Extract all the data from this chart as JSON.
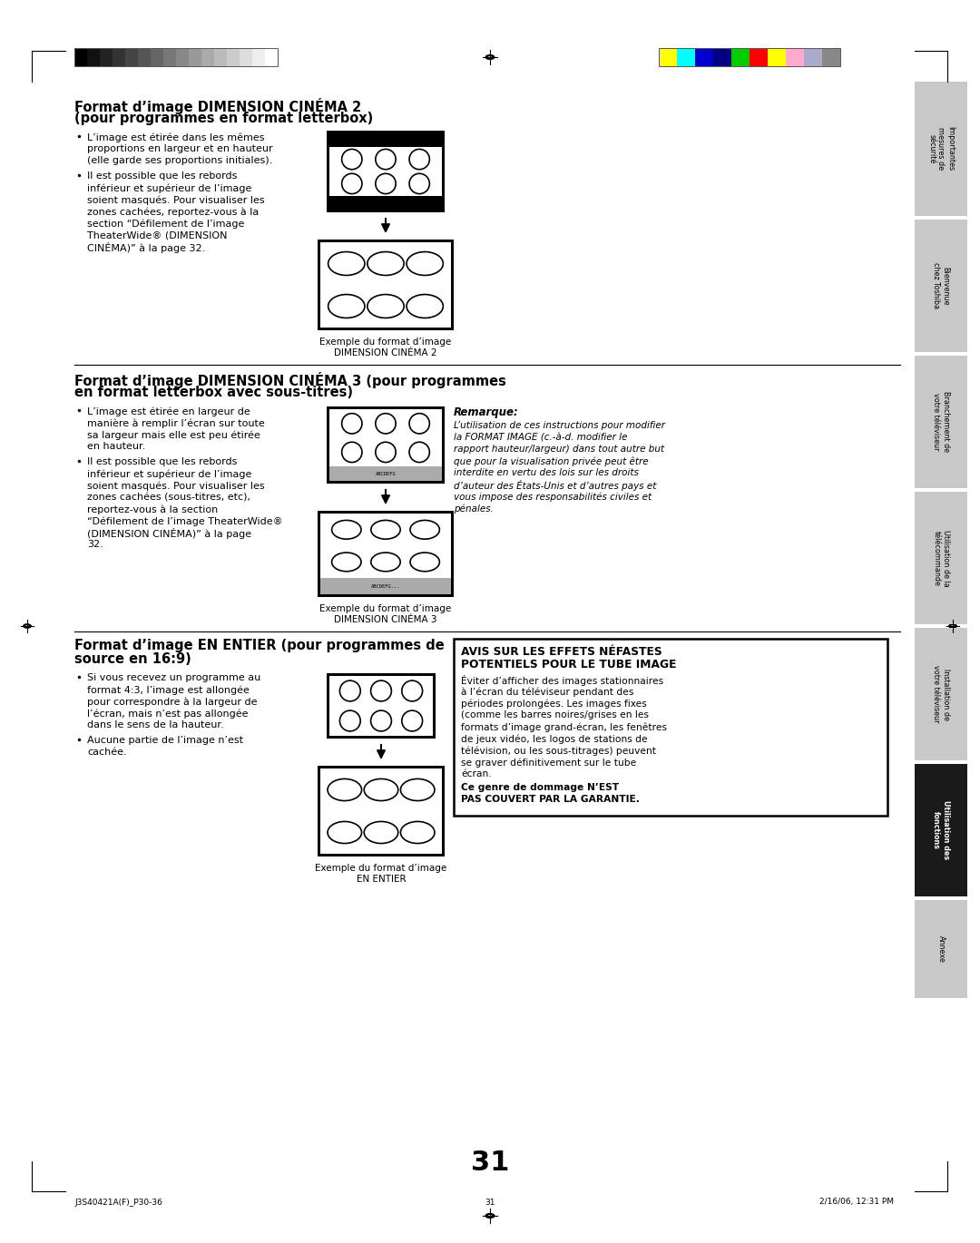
{
  "bg_color": "#ffffff",
  "page_number": "31",
  "footer_left": "J3S40421A(F)_P30-36",
  "footer_center": "31",
  "footer_right": "2/16/06, 12:31 PM",
  "grayscale_colors": [
    "#000000",
    "#111111",
    "#222222",
    "#333333",
    "#444444",
    "#555555",
    "#666666",
    "#777777",
    "#888888",
    "#999999",
    "#aaaaaa",
    "#bbbbbb",
    "#cccccc",
    "#dddddd",
    "#eeeeee",
    "#ffffff"
  ],
  "color_bar_colors": [
    "#ffff00",
    "#00ffff",
    "#0000cd",
    "#000080",
    "#00cc00",
    "#ff0000",
    "#ffff00",
    "#ffaacc",
    "#aaaacc",
    "#888888"
  ],
  "right_tabs": [
    {
      "text": "Importantes\nmesures de\nsécurité",
      "color": "#c8c8c8",
      "dark": false
    },
    {
      "text": "Bienvenue\nchez Toshiba",
      "color": "#c8c8c8",
      "dark": false
    },
    {
      "text": "Branchement de\nvotre téléviseur",
      "color": "#c8c8c8",
      "dark": false
    },
    {
      "text": "Utilisation de la\ntélécommande",
      "color": "#c8c8c8",
      "dark": false
    },
    {
      "text": "Installation de\nvotre téléviseur",
      "color": "#c8c8c8",
      "dark": false
    },
    {
      "text": "Utilisation des\nfonctions",
      "color": "#1a1a1a",
      "dark": true
    },
    {
      "text": "Annexe",
      "color": "#c8c8c8",
      "dark": false
    }
  ],
  "section1_title_line1": "Format d’image DIMENSION CINÉMA 2",
  "section1_title_line2": "(pour programmes en format letterbox)",
  "section1_bullet1_lines": [
    "L’image est étirée dans les mêmes",
    "proportions en largeur et en hauteur",
    "(elle garde ses proportions initiales)."
  ],
  "section1_bullet2_lines": [
    "Il est possible que les rebords",
    "inférieur et supérieur de l’image",
    "soient masqués. Pour visualiser les",
    "zones cachées, reportez-vous à la",
    "section “Défilement de l’image",
    "TheaterWide® (DIMENSION",
    "CINÉMA)” à la page 32."
  ],
  "section1_caption_line1": "Exemple du format d’image",
  "section1_caption_line2": "DIMENSION CINÉMA 2",
  "section2_title_line1": "Format d’image DIMENSION CINÉMA 3 (pour programmes",
  "section2_title_line2": "en format letterbox avec sous-titres)",
  "section2_bullet1_lines": [
    "L’image est étirée en largeur de",
    "manière à remplir l’écran sur toute",
    "sa largeur mais elle est peu étirée",
    "en hauteur."
  ],
  "section2_bullet2_lines": [
    "Il est possible que les rebords",
    "inférieur et supérieur de l’image",
    "soient masqués. Pour visualiser les",
    "zones cachées (sous-titres, etc),",
    "reportez-vous à la section",
    "“Défilement de l’image TheaterWide®",
    "(DIMENSION CINÉMA)” à la page",
    "32."
  ],
  "section2_caption_line1": "Exemple du format d’image",
  "section2_caption_line2": "DIMENSION CINÉMA 3",
  "section2_remark_title": "Remarque:",
  "section2_remark_lines": [
    "L’utilisation de ces instructions pour modifier",
    "la FORMAT IMAGE (c.-à-d. modifier le",
    "rapport hauteur/largeur) dans tout autre but",
    "que pour la visualisation privée peut être",
    "interdite en vertu des lois sur les droits",
    "d’auteur des États-Unis et d’autres pays et",
    "vous impose des responsabilités civiles et",
    "pénales."
  ],
  "section3_title_line1": "Format d’image EN ENTIER (pour programmes de",
  "section3_title_line2": "source en 16:9)",
  "section3_bullet1_lines": [
    "Si vous recevez un programme au",
    "format 4:3, l’image est allongée",
    "pour correspondre à la largeur de",
    "l’écran, mais n’est pas allongée",
    "dans le sens de la hauteur."
  ],
  "section3_bullet2_lines": [
    "Aucune partie de l’image n’est",
    "cachée."
  ],
  "section3_caption_line1": "Exemple du format d’image",
  "section3_caption_line2": "EN ENTIER",
  "avis_title_line1": "AVIS SUR LES EFFETS NÉFASTES",
  "avis_title_line2": "POTENTIELS POUR LE TUBE IMAGE",
  "avis_body_lines": [
    "Éviter d’afficher des images stationnaires",
    "à l’écran du téléviseur pendant des",
    "périodes prolongées. Les images fixes",
    "(comme les barres noires/grises en les",
    "formats d’image grand-écran, les fenêtres",
    "de jeux vidéo, les logos de stations de",
    "télévision, ou les sous-titrages) peuvent",
    "se graver définitivement sur le tube",
    "écran."
  ],
  "avis_bold_line1": "Ce genre de dommage N’EST",
  "avis_bold_line2": "PAS COUVERT PAR LA GARANTIE."
}
